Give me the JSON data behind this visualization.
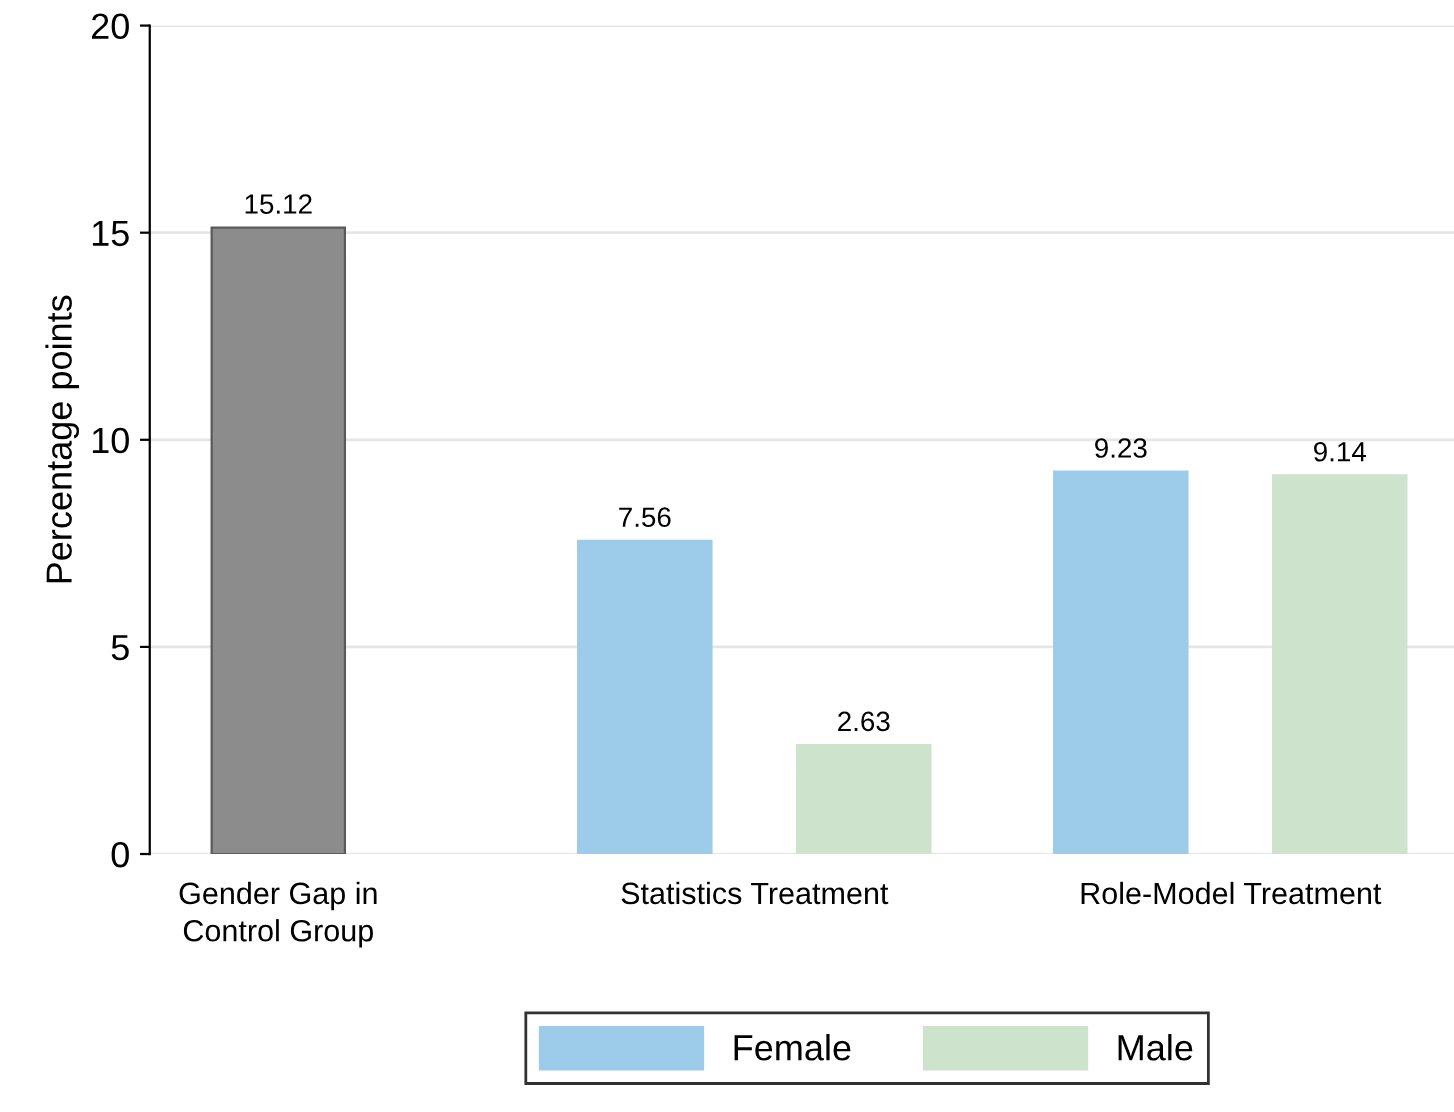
{
  "chart_data": {
    "type": "bar",
    "ylabel": "Percentage points",
    "categories": [
      "Gender Gap in\nControl Group",
      "Statistics Treatment",
      "Role-Model Treatment"
    ],
    "series": [
      {
        "color": "#8c8c8c",
        "values": [
          15.12,
          null,
          null
        ]
      },
      {
        "name": "Female",
        "color": "#9dcbea",
        "values": [
          null,
          7.56,
          9.23
        ]
      },
      {
        "name": "Male",
        "color": "#cde3cc",
        "values": [
          null,
          2.63,
          9.14
        ]
      }
    ],
    "ylim": [
      0,
      20
    ],
    "yticks": [
      0,
      5,
      10,
      15,
      20
    ],
    "grid": "y",
    "data_labels": true,
    "legend": "bottom"
  }
}
